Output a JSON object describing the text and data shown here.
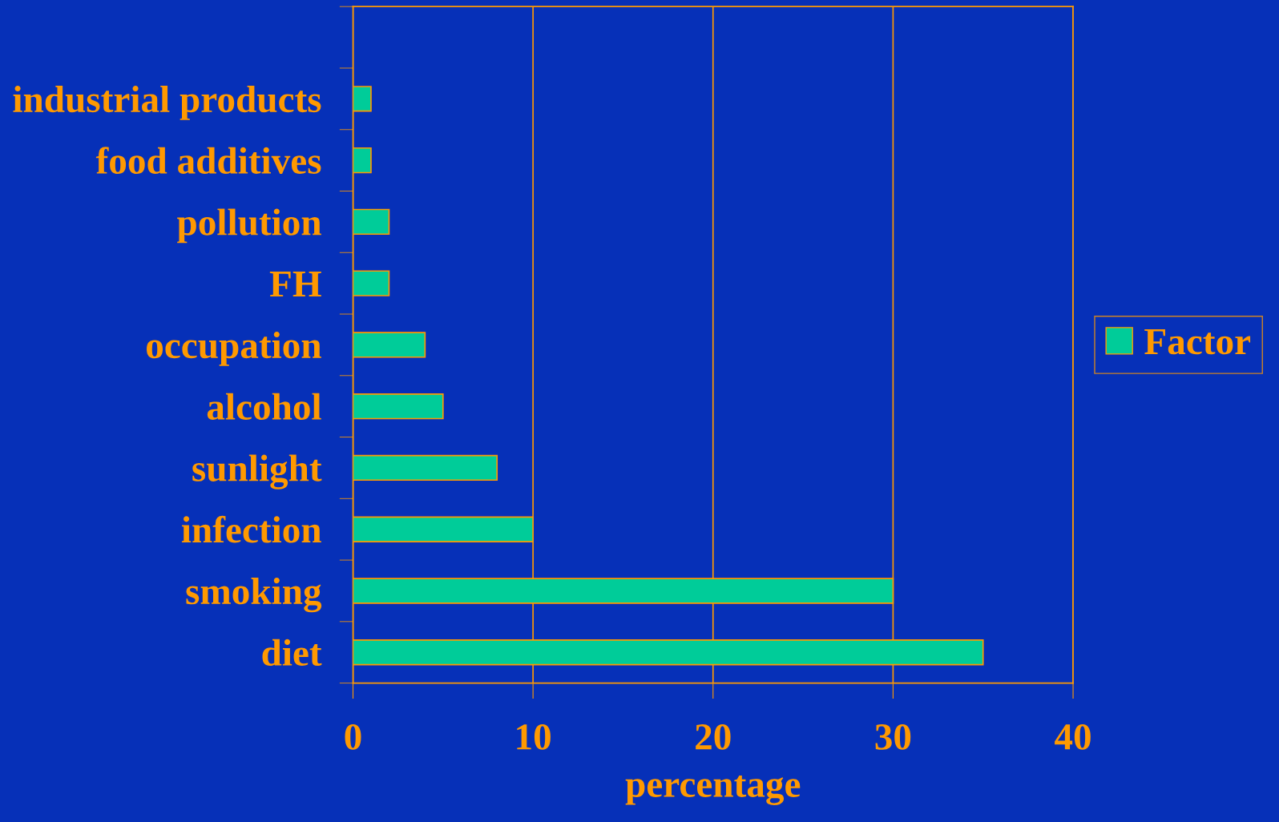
{
  "chart_data": {
    "type": "bar",
    "orientation": "horizontal",
    "xlabel": "percentage",
    "categories": [
      "industrial products",
      "food additives",
      "pollution",
      "FH",
      "occupation",
      "alcohol",
      "sunlight",
      "infection",
      "smoking",
      "diet"
    ],
    "series": [
      {
        "name": "Factor",
        "color": "#00cc99",
        "values": [
          1,
          1,
          2,
          2,
          4,
          5,
          8,
          10,
          30,
          35
        ]
      }
    ],
    "xlim": [
      0,
      40
    ],
    "xticks": [
      0,
      10,
      20,
      30,
      40
    ],
    "grid": "x",
    "legend": "right"
  }
}
